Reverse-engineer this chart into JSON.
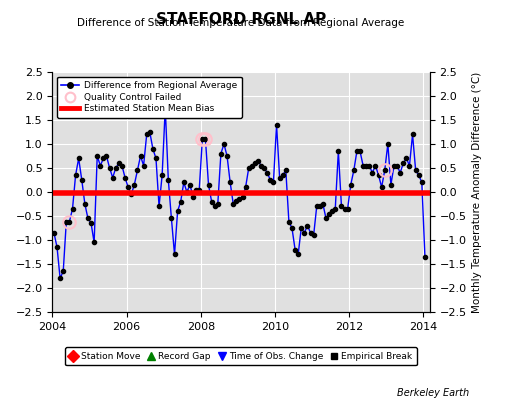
{
  "title": "STAFFORD RGNL AP",
  "subtitle": "Difference of Station Temperature Data from Regional Average",
  "ylabel": "Monthly Temperature Anomaly Difference (°C)",
  "bias_value": -0.02,
  "ylim": [
    -2.5,
    2.5
  ],
  "xlim": [
    2004.0,
    2014.17
  ],
  "xticks": [
    2004,
    2006,
    2008,
    2010,
    2012,
    2014
  ],
  "yticks": [
    -2.5,
    -2,
    -1.5,
    -1,
    -0.5,
    0,
    0.5,
    1,
    1.5,
    2,
    2.5
  ],
  "bg_color": "#e0e0e0",
  "grid_color": "white",
  "line_color": "blue",
  "marker_color": "black",
  "bias_color": "red",
  "qc_color": "pink",
  "time_series": [
    [
      2004.042,
      -0.85
    ],
    [
      2004.125,
      -1.15
    ],
    [
      2004.208,
      -1.8
    ],
    [
      2004.292,
      -1.65
    ],
    [
      2004.375,
      -0.62
    ],
    [
      2004.458,
      -0.62
    ],
    [
      2004.542,
      -0.35
    ],
    [
      2004.625,
      0.35
    ],
    [
      2004.708,
      0.7
    ],
    [
      2004.792,
      0.25
    ],
    [
      2004.875,
      -0.25
    ],
    [
      2004.958,
      -0.55
    ],
    [
      2005.042,
      -0.65
    ],
    [
      2005.125,
      -1.05
    ],
    [
      2005.208,
      0.75
    ],
    [
      2005.292,
      0.55
    ],
    [
      2005.375,
      0.7
    ],
    [
      2005.458,
      0.75
    ],
    [
      2005.542,
      0.5
    ],
    [
      2005.625,
      0.3
    ],
    [
      2005.708,
      0.5
    ],
    [
      2005.792,
      0.6
    ],
    [
      2005.875,
      0.55
    ],
    [
      2005.958,
      0.3
    ],
    [
      2006.042,
      0.1
    ],
    [
      2006.125,
      -0.05
    ],
    [
      2006.208,
      0.15
    ],
    [
      2006.292,
      0.45
    ],
    [
      2006.375,
      0.75
    ],
    [
      2006.458,
      0.55
    ],
    [
      2006.542,
      1.2
    ],
    [
      2006.625,
      1.25
    ],
    [
      2006.708,
      0.9
    ],
    [
      2006.792,
      0.7
    ],
    [
      2006.875,
      -0.3
    ],
    [
      2006.958,
      0.35
    ],
    [
      2007.042,
      1.75
    ],
    [
      2007.125,
      0.25
    ],
    [
      2007.208,
      -0.55
    ],
    [
      2007.292,
      -1.3
    ],
    [
      2007.375,
      -0.4
    ],
    [
      2007.458,
      -0.2
    ],
    [
      2007.542,
      0.2
    ],
    [
      2007.625,
      0.0
    ],
    [
      2007.708,
      0.15
    ],
    [
      2007.792,
      -0.1
    ],
    [
      2007.875,
      0.05
    ],
    [
      2007.958,
      0.05
    ],
    [
      2008.042,
      1.1
    ],
    [
      2008.125,
      1.1
    ],
    [
      2008.208,
      0.15
    ],
    [
      2008.292,
      -0.2
    ],
    [
      2008.375,
      -0.3
    ],
    [
      2008.458,
      -0.25
    ],
    [
      2008.542,
      0.8
    ],
    [
      2008.625,
      1.0
    ],
    [
      2008.708,
      0.75
    ],
    [
      2008.792,
      0.2
    ],
    [
      2008.875,
      -0.25
    ],
    [
      2008.958,
      -0.18
    ],
    [
      2009.042,
      -0.15
    ],
    [
      2009.125,
      -0.1
    ],
    [
      2009.208,
      0.1
    ],
    [
      2009.292,
      0.5
    ],
    [
      2009.375,
      0.55
    ],
    [
      2009.458,
      0.6
    ],
    [
      2009.542,
      0.65
    ],
    [
      2009.625,
      0.55
    ],
    [
      2009.708,
      0.5
    ],
    [
      2009.792,
      0.4
    ],
    [
      2009.875,
      0.25
    ],
    [
      2009.958,
      0.2
    ],
    [
      2010.042,
      1.4
    ],
    [
      2010.125,
      0.3
    ],
    [
      2010.208,
      0.35
    ],
    [
      2010.292,
      0.45
    ],
    [
      2010.375,
      -0.62
    ],
    [
      2010.458,
      -0.75
    ],
    [
      2010.542,
      -1.2
    ],
    [
      2010.625,
      -1.3
    ],
    [
      2010.708,
      -0.75
    ],
    [
      2010.792,
      -0.85
    ],
    [
      2010.875,
      -0.7
    ],
    [
      2010.958,
      -0.85
    ],
    [
      2011.042,
      -0.9
    ],
    [
      2011.125,
      -0.3
    ],
    [
      2011.208,
      -0.3
    ],
    [
      2011.292,
      -0.25
    ],
    [
      2011.375,
      -0.55
    ],
    [
      2011.458,
      -0.45
    ],
    [
      2011.542,
      -0.4
    ],
    [
      2011.625,
      -0.35
    ],
    [
      2011.708,
      0.85
    ],
    [
      2011.792,
      -0.3
    ],
    [
      2011.875,
      -0.35
    ],
    [
      2011.958,
      -0.35
    ],
    [
      2012.042,
      0.15
    ],
    [
      2012.125,
      0.45
    ],
    [
      2012.208,
      0.85
    ],
    [
      2012.292,
      0.85
    ],
    [
      2012.375,
      0.55
    ],
    [
      2012.458,
      0.55
    ],
    [
      2012.542,
      0.55
    ],
    [
      2012.625,
      0.4
    ],
    [
      2012.708,
      0.55
    ],
    [
      2012.792,
      0.35
    ],
    [
      2012.875,
      0.1
    ],
    [
      2012.958,
      0.45
    ],
    [
      2013.042,
      1.0
    ],
    [
      2013.125,
      0.15
    ],
    [
      2013.208,
      0.55
    ],
    [
      2013.292,
      0.55
    ],
    [
      2013.375,
      0.4
    ],
    [
      2013.458,
      0.6
    ],
    [
      2013.542,
      0.7
    ],
    [
      2013.625,
      0.55
    ],
    [
      2013.708,
      1.2
    ],
    [
      2013.792,
      0.45
    ],
    [
      2013.875,
      0.35
    ],
    [
      2013.958,
      0.2
    ],
    [
      2014.042,
      -1.35
    ]
  ],
  "qc_failed": [
    [
      2004.458,
      -0.62
    ],
    [
      2008.042,
      1.1
    ],
    [
      2008.125,
      1.1
    ],
    [
      2012.958,
      0.45
    ]
  ]
}
